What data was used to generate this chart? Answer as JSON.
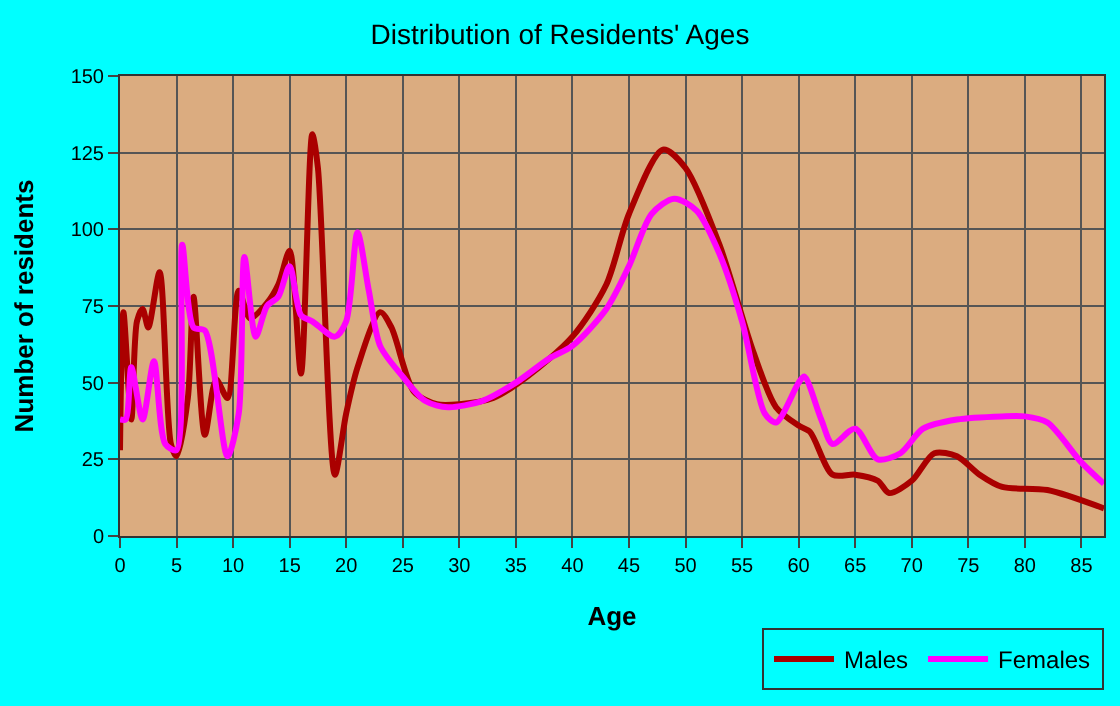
{
  "chart_data": {
    "type": "line",
    "title": "Distribution of Residents' Ages",
    "xlabel": "Age",
    "ylabel": "Number of residents",
    "xlim": [
      0,
      87
    ],
    "xticks": [
      0,
      5,
      10,
      15,
      20,
      25,
      30,
      35,
      40,
      45,
      50,
      55,
      60,
      65,
      70,
      75,
      80,
      85
    ],
    "ylim": [
      0,
      150
    ],
    "yticks": [
      0,
      25,
      50,
      75,
      100,
      125,
      150
    ],
    "grid": true,
    "legend": "bottom right",
    "marker": "none",
    "line_style": "solid",
    "series": [
      {
        "name": "Males",
        "color": "#aa0000",
        "x": [
          0,
          0.3,
          1,
          1.5,
          2,
          2.5,
          3.5,
          4.5,
          5,
          6,
          6.5,
          7.5,
          8.5,
          9.5,
          10.5,
          11.5,
          13,
          14,
          15,
          16,
          17,
          17.5,
          19,
          20,
          21,
          23,
          24,
          26,
          28,
          30,
          33,
          36,
          40,
          43,
          45,
          48,
          50,
          53,
          56,
          58,
          60,
          61,
          63,
          65,
          67,
          68,
          70,
          72,
          74,
          76,
          78,
          82,
          87
        ],
        "values": [
          28,
          73,
          38,
          70,
          74,
          68,
          86,
          30,
          26,
          45,
          78,
          33,
          51,
          45,
          80,
          71,
          76,
          82,
          93,
          53,
          131,
          120,
          20,
          40,
          55,
          73,
          68,
          47,
          43,
          43,
          45,
          52,
          65,
          82,
          105,
          126,
          120,
          95,
          60,
          42,
          36,
          34,
          20,
          20,
          18,
          14,
          18,
          27,
          26,
          20,
          16,
          15,
          9
        ]
      },
      {
        "name": "Females",
        "color": "#ff00ff",
        "x": [
          0,
          0.5,
          1,
          2,
          3,
          4,
          5,
          5.5,
          6.5,
          7.5,
          9.5,
          10.5,
          11,
          12,
          13,
          14,
          15,
          16,
          17,
          19,
          20,
          21,
          22,
          23,
          25,
          27,
          29,
          32,
          35,
          38,
          40,
          43,
          45,
          47,
          49,
          51,
          53,
          55,
          57,
          58,
          60,
          60.5,
          62,
          63,
          65,
          67,
          69,
          71,
          74,
          78,
          80,
          82,
          85,
          87
        ],
        "values": [
          38,
          38,
          55,
          38,
          57,
          30,
          28,
          95,
          68,
          67,
          26,
          40,
          91,
          65,
          75,
          78,
          88,
          72,
          70,
          65,
          70,
          99,
          80,
          62,
          52,
          44,
          42,
          44,
          50,
          58,
          62,
          74,
          88,
          105,
          110,
          106,
          92,
          70,
          40,
          37,
          50,
          52,
          38,
          30,
          35,
          25,
          27,
          35,
          38,
          39,
          39,
          37,
          24,
          17
        ]
      }
    ]
  }
}
